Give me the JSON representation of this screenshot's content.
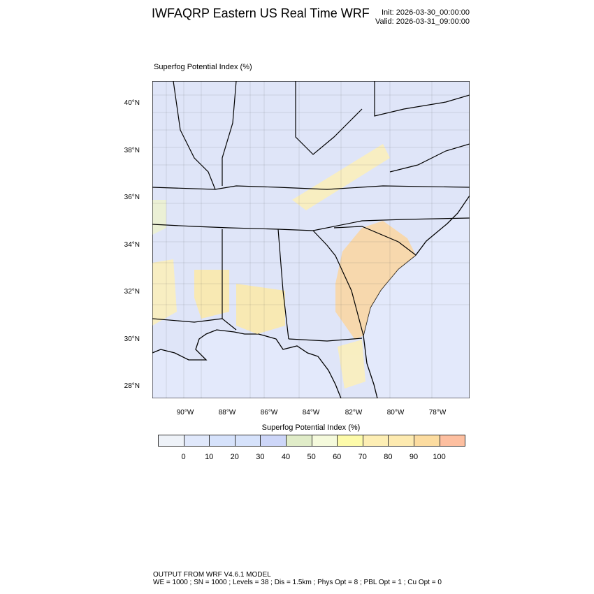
{
  "header": {
    "title": "IWFAQRP Eastern US Real Time WRF",
    "init": "Init: 2026-03-30_00:00:00",
    "valid": "Valid: 2026-03-31_09:00:00"
  },
  "field_label": "Superfog Potential Index   (%)",
  "map": {
    "lat_ticks": [
      "40°N",
      "38°N",
      "36°N",
      "34°N",
      "32°N",
      "30°N",
      "28°N"
    ],
    "lon_ticks": [
      "90°W",
      "88°W",
      "86°W",
      "84°W",
      "82°W",
      "80°W",
      "78°W"
    ],
    "land_color": "#dfe5f8",
    "ocean_color": "#e3e9fb",
    "high_color": "#fcd6a0"
  },
  "colorbar": {
    "title": "Superfog Potential Index  (%)",
    "labels": [
      "0",
      "10",
      "20",
      "30",
      "40",
      "50",
      "60",
      "70",
      "80",
      "90",
      "100"
    ],
    "colors": [
      "#eef2f8",
      "#e0e8fb",
      "#d6e2fb",
      "#d6e2fb",
      "#cdd6f8",
      "#e0ecc8",
      "#f5fadc",
      "#fdfbaa",
      "#fdeeb4",
      "#fdeab0",
      "#fcdca0",
      "#fdbfa0"
    ]
  },
  "footer": {
    "line1": "OUTPUT FROM WRF V4.6.1 MODEL",
    "line2": "WE = 1000 ; SN = 1000 ; Levels = 38 ; Dis = 1.5km ; Phys Opt = 8 ; PBL Opt = 1 ; Cu Opt = 0"
  }
}
